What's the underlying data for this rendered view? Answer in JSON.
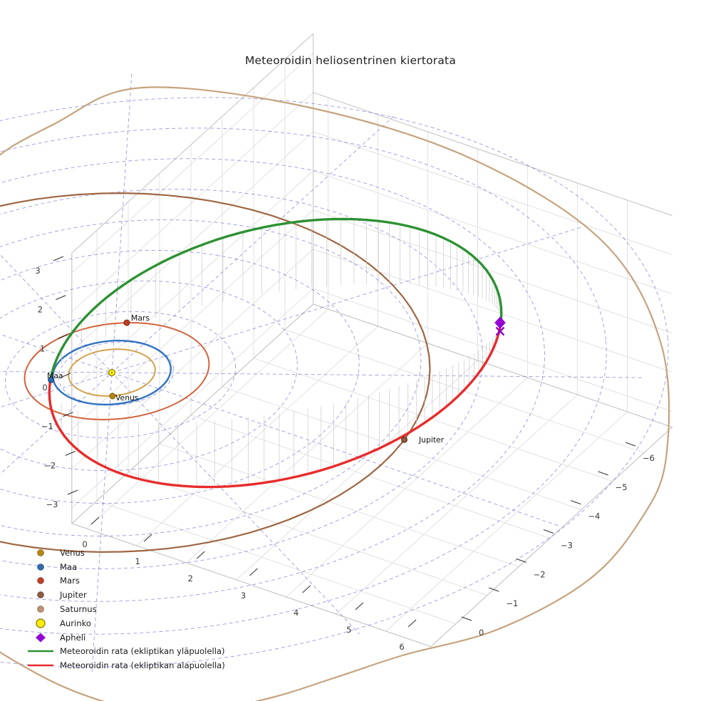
{
  "title": "Meteoroidin heliosentrinen kiertorata",
  "chart_data": {
    "type": "3d-line",
    "title": "Meteoroidin heliosentrinen kiertorata",
    "x_ticks": [
      0,
      1,
      2,
      3,
      4,
      5,
      6
    ],
    "y_ticks": [
      0,
      -1,
      -2,
      -3,
      -4,
      -5,
      -6
    ],
    "z_ticks": [
      3,
      2,
      1,
      0,
      -1,
      -2,
      -3
    ],
    "grid": true,
    "legend_position": "lower-left",
    "bodies": [
      {
        "name": "Venus",
        "orbit_radius_au": 0.72,
        "angle_deg": 57,
        "color": "#b8860b",
        "edge_color": "#7a5606",
        "orbit_color": "#d2a24c",
        "labeled_on_plot": true
      },
      {
        "name": "Maa",
        "orbit_radius_au": 1.0,
        "angle_deg": 137,
        "color": "#2e6ab0",
        "edge_color": "#17375f",
        "orbit_color": "#3173c2",
        "labeled_on_plot": true
      },
      {
        "name": "Mars",
        "orbit_radius_au": 1.52,
        "angle_deg": 247.5,
        "color": "#c33d22",
        "edge_color": "#6e1f0d",
        "orbit_color": "#d4613c",
        "labeled_on_plot": true
      },
      {
        "name": "Jupiter",
        "orbit_radius_au": 5.2,
        "angle_deg": -9,
        "color": "#8f5b3d",
        "edge_color": "#4f2f1c",
        "orbit_color": "#9e6642",
        "labeled_on_plot": true
      },
      {
        "name": "Saturnus",
        "orbit_radius_au": 9.54,
        "angle_deg": null,
        "color": "#bf9270",
        "edge_color": "#7d5a40",
        "orbit_color": "#c6a37e",
        "labeled_on_plot": false
      }
    ],
    "sun": {
      "name": "Aurinko",
      "color": "#ffef00",
      "edge_color": "#97871b"
    },
    "aphelion_marker": {
      "name": "Apheli",
      "color": "#9400d3",
      "x_marker_color": "#8b00c8"
    },
    "meteoroid_orbit": {
      "above_label": "Meteoroidin rata (ekliptikan yläpuolella)",
      "above_color": "#2d9132",
      "below_label": "Meteoroidin rata (ekliptikan alapuolella)",
      "below_color": "#e82b2b",
      "eccentricity": 0.7,
      "perihelion_au": 1.0,
      "aphelion_au": 5.8
    },
    "ecliptic_polar_grid": {
      "circle_radii_au": [
        1,
        2,
        3,
        4,
        5,
        6,
        7,
        8,
        9
      ],
      "spoke_step_deg": 30,
      "color": "#4646cc"
    }
  },
  "plot_labels": {
    "mars": "Mars",
    "maa": "Maa",
    "venus": "Venus",
    "jupiter": "Jupiter"
  },
  "legend": {
    "items": [
      {
        "label": "Venus",
        "icon": "dot",
        "color": "#b8860b"
      },
      {
        "label": "Maa",
        "icon": "dot",
        "color": "#2e6ab0"
      },
      {
        "label": "Mars",
        "icon": "dot",
        "color": "#c33d22"
      },
      {
        "label": "Jupiter",
        "icon": "dot",
        "color": "#8f5b3d"
      },
      {
        "label": "Saturnus",
        "icon": "dot",
        "color": "#bf9270"
      },
      {
        "label": "Aurinko",
        "icon": "circle-large",
        "color": "#ffef00",
        "edge_color": "#97871b"
      },
      {
        "label": "Apheli",
        "icon": "diamond",
        "color": "#9400d3"
      },
      {
        "label": "Meteoroidin rata (ekliptikan yläpuolella)",
        "icon": "line",
        "color": "#2d9132"
      },
      {
        "label": "Meteoroidin rata (ekliptikan alapuolella)",
        "icon": "line",
        "color": "#e82b2b"
      }
    ]
  }
}
